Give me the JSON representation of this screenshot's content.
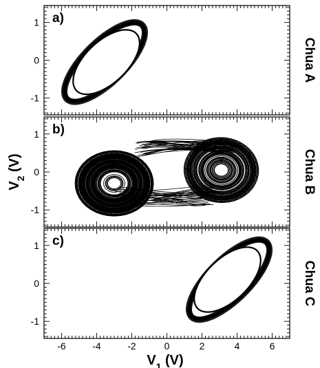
{
  "chart_data": [
    {
      "type": "line",
      "panel": "a)",
      "side_label": "Chua A",
      "description": "single-scroll limit-cycle attractor",
      "xlim": [
        -7,
        7
      ],
      "ylim": [
        -1.45,
        1.45
      ],
      "y_ticks": [
        -1,
        0,
        1
      ],
      "attractor": {
        "center": [
          -3.4,
          -0.05
        ],
        "x_range": [
          -6.0,
          -1.0
        ],
        "y_range": [
          -1.05,
          0.98
        ]
      }
    },
    {
      "type": "line",
      "panel": "b)",
      "side_label": "Chua B",
      "description": "double-scroll chaotic attractor",
      "xlim": [
        -7,
        7
      ],
      "ylim": [
        -1.45,
        1.45
      ],
      "y_ticks": [
        -1,
        0,
        1
      ],
      "attractor": {
        "left_scroll_center": [
          -3.0,
          -0.3
        ],
        "right_scroll_center": [
          3.2,
          0.1
        ],
        "x_range": [
          -5.5,
          5.3
        ],
        "y_range": [
          -1.0,
          0.85
        ]
      }
    },
    {
      "type": "line",
      "panel": "c)",
      "side_label": "Chua C",
      "description": "single-scroll limit-cycle attractor (mirror of A)",
      "xlim": [
        -7,
        7
      ],
      "ylim": [
        -1.45,
        1.45
      ],
      "y_ticks": [
        -1,
        0,
        1
      ],
      "attractor": {
        "center": [
          3.4,
          0.05
        ],
        "x_range": [
          1.0,
          6.5
        ],
        "y_range": [
          -1.05,
          1.12
        ]
      }
    }
  ],
  "x_ticks": [
    -6,
    -4,
    -2,
    0,
    2,
    4,
    6
  ],
  "xlabel_main": "V",
  "xlabel_sub": "1",
  "xlabel_unit": " (V)",
  "ylabel_main": "V",
  "ylabel_sub": "2",
  "ylabel_unit": " (V)"
}
